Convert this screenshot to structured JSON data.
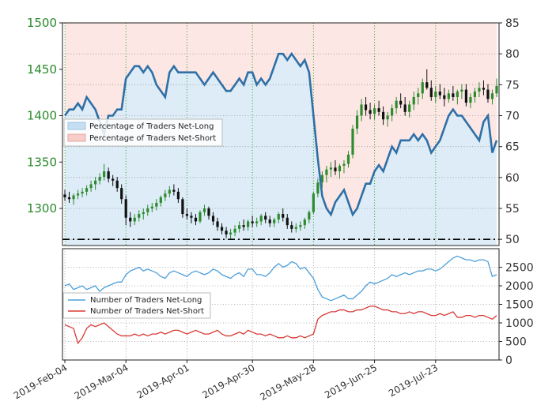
{
  "chart_data": {
    "type": "line",
    "x_tick_labels": [
      "2019-Feb-04",
      "2019-Mar-04",
      "2019-Apr-01",
      "2019-Apr-30",
      "2019-May-28",
      "2019-Jun-25",
      "2019-Jul-23"
    ],
    "top_panel": {
      "left_axis": {
        "ylim": [
          1260,
          1500
        ],
        "tick_labels": [
          "1500",
          "1450",
          "1400",
          "1350",
          "1300"
        ]
      },
      "right_axis": {
        "ylim": [
          49,
          85
        ],
        "tick_labels": [
          "85",
          "80",
          "75",
          "70",
          "65",
          "60",
          "55",
          "50"
        ]
      },
      "legend": [
        "Percentage of Traders Net-Long",
        "Percentage of Traders Net-Short"
      ],
      "legend_position": "left",
      "baseline_value": 50,
      "net_long_pct": [
        70,
        71,
        71,
        72,
        71,
        73,
        72,
        71,
        69,
        67,
        70,
        70,
        71,
        71,
        76,
        77,
        78,
        78,
        77,
        78,
        77,
        75,
        74,
        73,
        77,
        78,
        77,
        77,
        77,
        77,
        77,
        76,
        75,
        76,
        77,
        76,
        75,
        74,
        74,
        75,
        76,
        75,
        77,
        77,
        75,
        76,
        75,
        76,
        78,
        80,
        80,
        79,
        80,
        79,
        78,
        79,
        77,
        70,
        63,
        57,
        55,
        54,
        56,
        57,
        58,
        56,
        54,
        55,
        57,
        59,
        59,
        61,
        62,
        61,
        63,
        65,
        64,
        66,
        66,
        66,
        67,
        66,
        67,
        66,
        64,
        65,
        66,
        68,
        70,
        71,
        70,
        70,
        69,
        68,
        67,
        66,
        69,
        70,
        64,
        66
      ],
      "price_ohlc": [
        [
          1315,
          1320,
          1308,
          1312
        ],
        [
          1312,
          1318,
          1306,
          1310
        ],
        [
          1310,
          1316,
          1304,
          1314
        ],
        [
          1314,
          1320,
          1310,
          1316
        ],
        [
          1316,
          1322,
          1312,
          1318
        ],
        [
          1318,
          1325,
          1314,
          1322
        ],
        [
          1322,
          1330,
          1318,
          1326
        ],
        [
          1326,
          1334,
          1320,
          1330
        ],
        [
          1330,
          1338,
          1326,
          1334
        ],
        [
          1334,
          1348,
          1330,
          1340
        ],
        [
          1340,
          1344,
          1328,
          1332
        ],
        [
          1332,
          1336,
          1324,
          1330
        ],
        [
          1330,
          1334,
          1318,
          1322
        ],
        [
          1322,
          1326,
          1305,
          1310
        ],
        [
          1310,
          1314,
          1282,
          1290
        ],
        [
          1290,
          1296,
          1280,
          1286
        ],
        [
          1286,
          1294,
          1282,
          1290
        ],
        [
          1290,
          1298,
          1286,
          1294
        ],
        [
          1294,
          1300,
          1288,
          1296
        ],
        [
          1296,
          1304,
          1292,
          1300
        ],
        [
          1300,
          1306,
          1296,
          1302
        ],
        [
          1302,
          1310,
          1298,
          1306
        ],
        [
          1306,
          1314,
          1302,
          1312
        ],
        [
          1312,
          1320,
          1308,
          1316
        ],
        [
          1316,
          1324,
          1312,
          1320
        ],
        [
          1320,
          1326,
          1314,
          1318
        ],
        [
          1318,
          1322,
          1306,
          1310
        ],
        [
          1310,
          1312,
          1290,
          1294
        ],
        [
          1294,
          1300,
          1288,
          1292
        ],
        [
          1292,
          1296,
          1284,
          1290
        ],
        [
          1290,
          1294,
          1282,
          1286
        ],
        [
          1286,
          1298,
          1284,
          1296
        ],
        [
          1296,
          1304,
          1292,
          1300
        ],
        [
          1300,
          1302,
          1288,
          1292
        ],
        [
          1292,
          1296,
          1282,
          1286
        ],
        [
          1286,
          1290,
          1276,
          1280
        ],
        [
          1280,
          1284,
          1272,
          1276
        ],
        [
          1276,
          1280,
          1268,
          1272
        ],
        [
          1272,
          1278,
          1266,
          1274
        ],
        [
          1274,
          1282,
          1270,
          1278
        ],
        [
          1278,
          1286,
          1274,
          1282
        ],
        [
          1282,
          1288,
          1276,
          1280
        ],
        [
          1280,
          1288,
          1276,
          1286
        ],
        [
          1286,
          1292,
          1280,
          1284
        ],
        [
          1284,
          1290,
          1280,
          1286
        ],
        [
          1286,
          1294,
          1282,
          1292
        ],
        [
          1292,
          1296,
          1284,
          1288
        ],
        [
          1288,
          1292,
          1280,
          1284
        ],
        [
          1284,
          1290,
          1280,
          1288
        ],
        [
          1288,
          1296,
          1284,
          1294
        ],
        [
          1294,
          1300,
          1286,
          1290
        ],
        [
          1290,
          1294,
          1278,
          1282
        ],
        [
          1282,
          1286,
          1274,
          1278
        ],
        [
          1278,
          1284,
          1274,
          1280
        ],
        [
          1280,
          1286,
          1276,
          1282
        ],
        [
          1282,
          1290,
          1278,
          1288
        ],
        [
          1288,
          1298,
          1284,
          1296
        ],
        [
          1296,
          1318,
          1294,
          1316
        ],
        [
          1316,
          1332,
          1312,
          1328
        ],
        [
          1328,
          1340,
          1322,
          1336
        ],
        [
          1336,
          1346,
          1328,
          1342
        ],
        [
          1342,
          1350,
          1334,
          1344
        ],
        [
          1344,
          1352,
          1336,
          1340
        ],
        [
          1340,
          1348,
          1332,
          1346
        ],
        [
          1346,
          1352,
          1338,
          1348
        ],
        [
          1348,
          1362,
          1344,
          1358
        ],
        [
          1358,
          1390,
          1354,
          1386
        ],
        [
          1386,
          1406,
          1380,
          1400
        ],
        [
          1400,
          1418,
          1394,
          1412
        ],
        [
          1412,
          1420,
          1400,
          1406
        ],
        [
          1406,
          1414,
          1396,
          1402
        ],
        [
          1402,
          1412,
          1396,
          1408
        ],
        [
          1408,
          1416,
          1400,
          1404
        ],
        [
          1404,
          1410,
          1390,
          1396
        ],
        [
          1396,
          1404,
          1388,
          1400
        ],
        [
          1400,
          1412,
          1394,
          1408
        ],
        [
          1408,
          1420,
          1402,
          1416
        ],
        [
          1416,
          1424,
          1408,
          1412
        ],
        [
          1412,
          1420,
          1400,
          1404
        ],
        [
          1404,
          1416,
          1398,
          1412
        ],
        [
          1412,
          1426,
          1406,
          1420
        ],
        [
          1420,
          1430,
          1412,
          1424
        ],
        [
          1424,
          1440,
          1418,
          1436
        ],
        [
          1436,
          1450,
          1428,
          1430
        ],
        [
          1430,
          1438,
          1416,
          1420
        ],
        [
          1420,
          1432,
          1414,
          1426
        ],
        [
          1426,
          1434,
          1418,
          1422
        ],
        [
          1422,
          1430,
          1410,
          1418
        ],
        [
          1418,
          1428,
          1414,
          1424
        ],
        [
          1424,
          1432,
          1416,
          1420
        ],
        [
          1420,
          1428,
          1412,
          1426
        ],
        [
          1426,
          1434,
          1418,
          1428
        ],
        [
          1428,
          1434,
          1410,
          1414
        ],
        [
          1414,
          1424,
          1408,
          1420
        ],
        [
          1420,
          1430,
          1414,
          1426
        ],
        [
          1426,
          1436,
          1420,
          1430
        ],
        [
          1430,
          1438,
          1422,
          1428
        ],
        [
          1428,
          1434,
          1414,
          1418
        ],
        [
          1418,
          1428,
          1412,
          1424
        ],
        [
          1424,
          1440,
          1420,
          1432
        ]
      ]
    },
    "bottom_panel": {
      "ylim": [
        0,
        3000
      ],
      "tick_labels": [
        "2500",
        "2000",
        "1500",
        "1000",
        "500",
        "0"
      ],
      "legend": [
        "Number of Traders Net-Long",
        "Number of Traders Net-Short"
      ],
      "legend_position": "left",
      "net_long": [
        2000,
        2050,
        1900,
        1950,
        2000,
        1900,
        1950,
        2000,
        1850,
        1950,
        2000,
        2050,
        2100,
        2100,
        2300,
        2400,
        2450,
        2500,
        2400,
        2450,
        2400,
        2350,
        2250,
        2200,
        2350,
        2400,
        2350,
        2300,
        2250,
        2350,
        2400,
        2350,
        2300,
        2350,
        2450,
        2400,
        2300,
        2250,
        2200,
        2300,
        2350,
        2250,
        2450,
        2450,
        2300,
        2300,
        2250,
        2350,
        2500,
        2600,
        2500,
        2550,
        2650,
        2600,
        2450,
        2500,
        2350,
        2200,
        1900,
        1700,
        1650,
        1600,
        1650,
        1700,
        1750,
        1650,
        1650,
        1750,
        1850,
        2000,
        2100,
        2050,
        2100,
        2150,
        2200,
        2300,
        2250,
        2300,
        2350,
        2300,
        2350,
        2400,
        2400,
        2450,
        2450,
        2400,
        2450,
        2550,
        2650,
        2750,
        2800,
        2750,
        2700,
        2700,
        2650,
        2700,
        2700,
        2650,
        2250,
        2300
      ],
      "net_short": [
        950,
        900,
        850,
        450,
        600,
        850,
        950,
        900,
        950,
        1000,
        900,
        800,
        700,
        650,
        650,
        650,
        700,
        650,
        700,
        650,
        700,
        700,
        750,
        700,
        750,
        800,
        800,
        750,
        700,
        750,
        800,
        750,
        700,
        700,
        750,
        800,
        700,
        650,
        650,
        700,
        750,
        700,
        800,
        750,
        700,
        700,
        650,
        700,
        650,
        600,
        600,
        650,
        600,
        600,
        650,
        600,
        650,
        700,
        1100,
        1200,
        1250,
        1300,
        1300,
        1350,
        1350,
        1300,
        1300,
        1350,
        1350,
        1400,
        1450,
        1450,
        1400,
        1350,
        1350,
        1300,
        1300,
        1250,
        1250,
        1300,
        1250,
        1300,
        1300,
        1250,
        1200,
        1200,
        1250,
        1200,
        1250,
        1300,
        1150,
        1150,
        1200,
        1200,
        1150,
        1200,
        1200,
        1150,
        1100,
        1200
      ]
    },
    "colors": {
      "price_up": "#2e8b2e",
      "price_down": "#111111",
      "pct_line": "#2f6fa6",
      "long_fill": "#d9eaf6",
      "short_fill": "#fbe3df",
      "count_long": "#4c9fd8",
      "count_short": "#d83a34",
      "left_tick": "#2a8a2a",
      "grid_green": "#2aa02a",
      "grid_gray": "#cccccc"
    }
  }
}
